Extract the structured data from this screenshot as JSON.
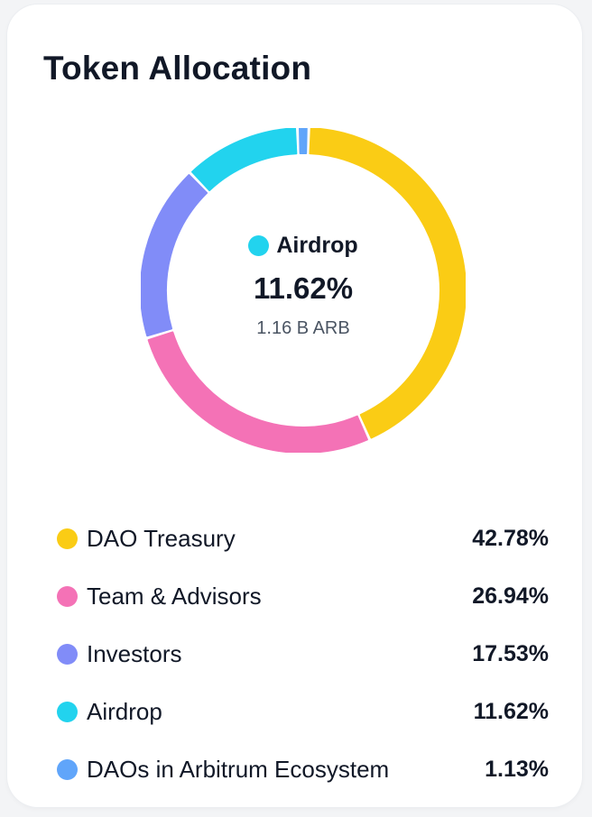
{
  "card": {
    "title": "Token Allocation"
  },
  "center": {
    "label": "Airdrop",
    "color": "#22d3ee",
    "percent": "11.62%",
    "amount": "1.16 B ARB"
  },
  "legend": [
    {
      "name": "DAO Treasury",
      "value": "42.78%",
      "color": "#facc15"
    },
    {
      "name": "Team & Advisors",
      "value": "26.94%",
      "color": "#f472b6"
    },
    {
      "name": "Investors",
      "value": "17.53%",
      "color": "#818cf8"
    },
    {
      "name": "Airdrop",
      "value": "11.62%",
      "color": "#22d3ee"
    },
    {
      "name": "DAOs in Arbitrum Ecosystem",
      "value": "1.13%",
      "color": "#60a5fa"
    }
  ],
  "chart_data": {
    "type": "pie",
    "title": "Token Allocation",
    "donut": true,
    "categories": [
      "DAO Treasury",
      "Team & Advisors",
      "Investors",
      "Airdrop",
      "DAOs in Arbitrum Ecosystem"
    ],
    "values": [
      42.78,
      26.94,
      17.53,
      11.62,
      1.13
    ],
    "colors": [
      "#facc15",
      "#f472b6",
      "#818cf8",
      "#22d3ee",
      "#60a5fa"
    ],
    "highlighted": {
      "name": "Airdrop",
      "percent": 11.62,
      "amount": "1.16 B ARB"
    },
    "legend_position": "bottom"
  }
}
